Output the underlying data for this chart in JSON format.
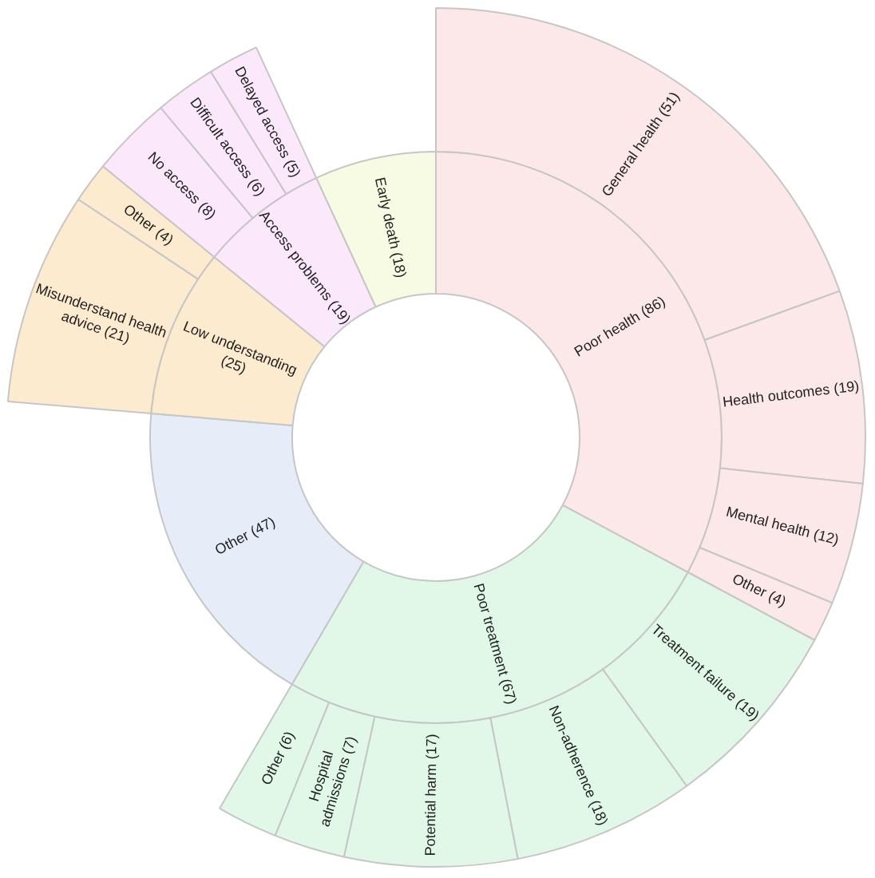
{
  "chart_data": [
    {
      "type": "donut",
      "categories": [
        "Poor health",
        "Poor treatment",
        "Other",
        "Low understanding",
        "Access problems",
        "Early death"
      ],
      "values": [
        86,
        67,
        47,
        25,
        19,
        18
      ],
      "value_labels": [
        "(86)",
        "(67)",
        "(47)",
        "(25)",
        "(19)",
        "(18)"
      ],
      "colors": [
        "#fde8e9",
        "#e1f8e9",
        "#e7ecf9",
        "#fdebd0",
        "#fbe8fb",
        "#f8fbe4"
      ]
    },
    {
      "type": "donut",
      "categories": [
        "General health",
        "Health outcomes",
        "Mental health",
        "Other",
        "Treatment failure",
        "Non-adherence",
        "Potential harm",
        "Hospital admissions",
        "Other",
        null,
        "Misunderstand health advice",
        "Other",
        "No access",
        "Difficult access",
        "Delayed access",
        null
      ],
      "values": [
        51,
        19,
        12,
        4,
        19,
        18,
        17,
        7,
        6,
        null,
        21,
        4,
        8,
        6,
        5,
        null
      ],
      "value_labels": [
        "(51)",
        "(19)",
        "(12)",
        "(4)",
        "(19)",
        "(18)",
        "(17)",
        "(7)",
        "(6)",
        null,
        "(21)",
        "(4)",
        "(8)",
        "(6)",
        "(5)",
        null
      ],
      "colors": [
        "#fde8e9",
        "#fde8e9",
        "#fde8e9",
        "#fde8e9",
        "#e1f8e9",
        "#e1f8e9",
        "#e1f8e9",
        "#e1f8e9",
        "#e1f8e9",
        null,
        "#fdebd0",
        "#fdebd0",
        "#fbe8fb",
        "#fbe8fb",
        "#fbe8fb",
        null
      ]
    }
  ]
}
